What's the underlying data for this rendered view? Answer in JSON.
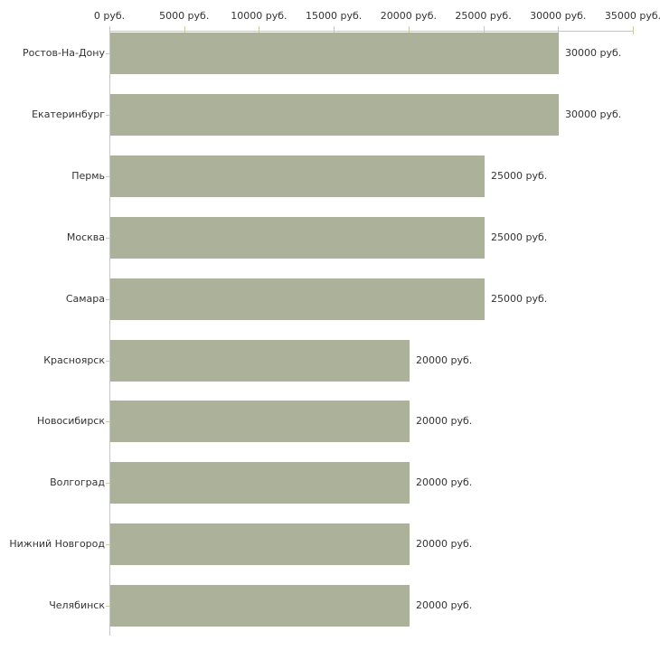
{
  "chart_data": {
    "type": "bar",
    "orientation": "horizontal",
    "title": "",
    "xlabel": "",
    "ylabel": "",
    "categories": [
      "Ростов-На-Дону",
      "Екатеринбург",
      "Пермь",
      "Москва",
      "Самара",
      "Красноярск",
      "Новосибирск",
      "Волгоград",
      "Нижний Новгород",
      "Челябинск"
    ],
    "values": [
      30000,
      30000,
      25000,
      25000,
      25000,
      20000,
      20000,
      20000,
      20000,
      20000
    ],
    "value_labels": [
      "30000 руб.",
      "30000 руб.",
      "25000 руб.",
      "25000 руб.",
      "25000 руб.",
      "20000 руб.",
      "20000 руб.",
      "20000 руб.",
      "20000 руб.",
      "20000 руб."
    ],
    "x_ticks": [
      0,
      5000,
      10000,
      15000,
      20000,
      25000,
      30000,
      35000
    ],
    "x_tick_labels": [
      "0 руб.",
      "5000 руб.",
      "10000 руб.",
      "15000 руб.",
      "20000 руб.",
      "25000 руб.",
      "30000 руб.",
      "35000 руб."
    ],
    "xlim": [
      0,
      35000
    ],
    "axis_position": "top",
    "grid": false,
    "legend": false,
    "colors": {
      "bar": "#abb299",
      "tick": "#cbcb9e",
      "axis": "#c6c6c6",
      "text": "#333333",
      "background": "#ffffff"
    }
  }
}
